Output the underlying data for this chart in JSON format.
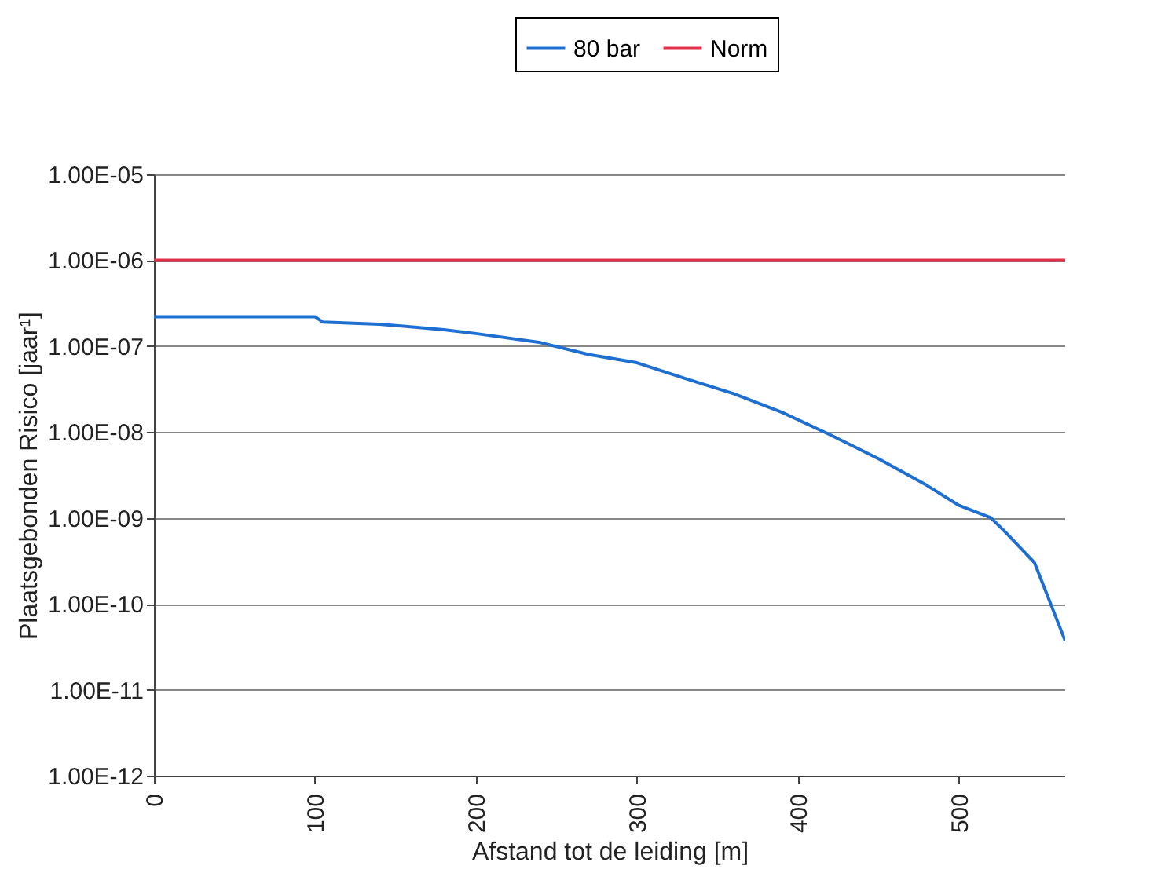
{
  "chart_data": {
    "type": "line",
    "xlabel": "Afstand tot de leiding [m]",
    "ylabel": "Plaatsgebonden Risico [jaar¹]",
    "xlim": [
      0,
      566
    ],
    "xticks": [
      0,
      100,
      200,
      300,
      400,
      500
    ],
    "ylim": [
      1e-12,
      1e-05
    ],
    "log": true,
    "yticks": [
      {
        "value": 1e-12,
        "label": "1.00E-12"
      },
      {
        "value": 1e-11,
        "label": "1.00E-11"
      },
      {
        "value": 1e-10,
        "label": "1.00E-10"
      },
      {
        "value": 1e-09,
        "label": "1.00E-09"
      },
      {
        "value": 1e-08,
        "label": "1.00E-08"
      },
      {
        "value": 1e-07,
        "label": "1.00E-07"
      },
      {
        "value": 1e-06,
        "label": "1.00E-06"
      },
      {
        "value": 1e-05,
        "label": "1.00E-05"
      }
    ],
    "grid": "y",
    "legend": "top",
    "marker": "none",
    "line_style": "solid",
    "series": [
      {
        "name": "80 bar",
        "color": "#1f6fd0",
        "x": [
          0,
          100,
          105,
          140,
          180,
          200,
          240,
          270,
          300,
          330,
          360,
          390,
          420,
          450,
          480,
          500,
          520,
          530,
          547,
          557,
          566
        ],
        "values": [
          2.2e-07,
          2.2e-07,
          1.9e-07,
          1.8e-07,
          1.55e-07,
          1.4e-07,
          1.1e-07,
          8e-08,
          6.4e-08,
          4.2e-08,
          2.8e-08,
          1.7e-08,
          9.3e-09,
          4.9e-09,
          2.4e-09,
          1.4e-09,
          1e-09,
          6.5e-10,
          3e-10,
          1e-10,
          3.7e-11
        ]
      },
      {
        "name": "Norm",
        "color": "#e0304a",
        "x": [
          0,
          566
        ],
        "values": [
          1e-06,
          1e-06
        ]
      }
    ]
  }
}
